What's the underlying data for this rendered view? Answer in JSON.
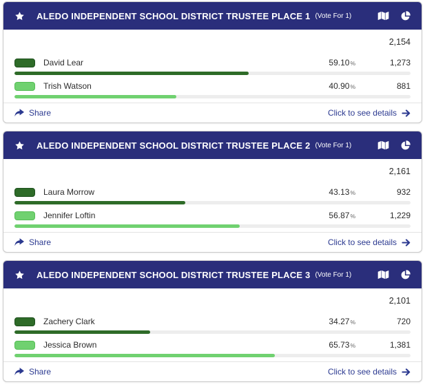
{
  "labels": {
    "percent_unit": "%"
  },
  "footer": {
    "share_label": "Share",
    "details_label": "Click to see details"
  },
  "colors": {
    "header_bg": "#2a2e7b",
    "dark_green": "#2e6b28",
    "light_green": "#70d170",
    "bar_track": "#ededed",
    "link_navy": "#2b3990"
  },
  "cards": [
    {
      "title": "ALEDO INDEPENDENT SCHOOL DISTRICT TRUSTEE PLACE 1",
      "vote_for": "(Vote For 1)",
      "total": "2,154",
      "candidates": [
        {
          "name": "David Lear",
          "percent": "59.10",
          "percent_value": 59.1,
          "votes": "1,273",
          "color": "dark"
        },
        {
          "name": "Trish Watson",
          "percent": "40.90",
          "percent_value": 40.9,
          "votes": "881",
          "color": "light"
        }
      ]
    },
    {
      "title": "ALEDO INDEPENDENT SCHOOL DISTRICT TRUSTEE PLACE 2",
      "vote_for": "(Vote For 1)",
      "total": "2,161",
      "candidates": [
        {
          "name": "Laura Morrow",
          "percent": "43.13",
          "percent_value": 43.13,
          "votes": "932",
          "color": "dark"
        },
        {
          "name": "Jennifer Loftin",
          "percent": "56.87",
          "percent_value": 56.87,
          "votes": "1,229",
          "color": "light"
        }
      ]
    },
    {
      "title": "ALEDO INDEPENDENT SCHOOL DISTRICT TRUSTEE PLACE 3",
      "vote_for": "(Vote For 1)",
      "total": "2,101",
      "candidates": [
        {
          "name": "Zachery Clark",
          "percent": "34.27",
          "percent_value": 34.27,
          "votes": "720",
          "color": "dark"
        },
        {
          "name": "Jessica Brown",
          "percent": "65.73",
          "percent_value": 65.73,
          "votes": "1,381",
          "color": "light"
        }
      ]
    }
  ]
}
